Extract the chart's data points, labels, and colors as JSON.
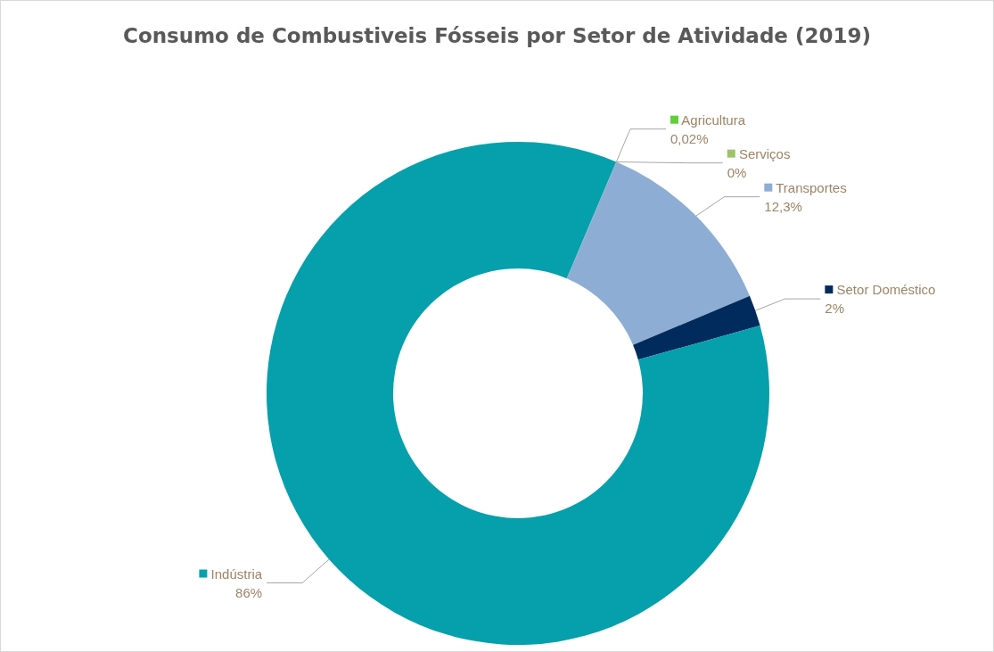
{
  "chart_data": {
    "type": "donut",
    "title": "Consumo de Combustiveis Fósseis por Setor de Atividade (2019)",
    "categories": [
      "Agricultura",
      "Serviços",
      "Transportes",
      "Setor Doméstico",
      "Indústria"
    ],
    "values": [
      0.02,
      0,
      12.3,
      2,
      86
    ],
    "colors": [
      "#5fcf3a",
      "#9dc36b",
      "#8eadd5",
      "#002b5c",
      "#05a0ab"
    ],
    "legend": "right",
    "value_labels": [
      "0,02%",
      "0%",
      "12,3%",
      "2%",
      "86%"
    ]
  }
}
